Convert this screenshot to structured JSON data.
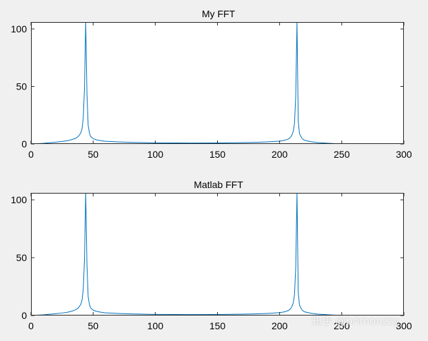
{
  "colors": {
    "background": "#f0f0f0",
    "axes": "#ffffff",
    "frame": "#262626",
    "line": "#0072bd"
  },
  "watermark": "知乎 @brimonzzy",
  "chart_data": [
    {
      "type": "line",
      "title": "My FFT",
      "xlabel": "",
      "ylabel": "",
      "xlim": [
        0,
        300
      ],
      "ylim": [
        0,
        106
      ],
      "xticks": [
        0,
        50,
        100,
        150,
        200,
        250,
        300
      ],
      "yticks": [
        0,
        50,
        100
      ],
      "grid": false,
      "series": [
        {
          "x": [
            1,
            5,
            10,
            15,
            20,
            25,
            30,
            33,
            36,
            38,
            40,
            41,
            42,
            43,
            44,
            45,
            46,
            47,
            48,
            50,
            53,
            56,
            60,
            70,
            80,
            100,
            128,
            150,
            170,
            180,
            190,
            195,
            200,
            203,
            205,
            207,
            208,
            209,
            210,
            211,
            212,
            213,
            214,
            215,
            216,
            218,
            220,
            225,
            230,
            235,
            240,
            245,
            250,
            254
          ],
          "y": [
            0.1,
            0.3,
            0.6,
            1.1,
            1.6,
            2.2,
            3.0,
            3.8,
            5.0,
            6.5,
            9.5,
            13,
            22,
            48,
            106,
            44,
            16,
            9.5,
            6.5,
            4.6,
            3.5,
            2.9,
            2.3,
            1.8,
            1.4,
            1.0,
            0.8,
            0.9,
            1.2,
            1.4,
            1.8,
            2.1,
            2.5,
            3.0,
            3.5,
            4.3,
            5.0,
            6.2,
            8.0,
            11,
            18,
            42,
            106,
            20,
            9.0,
            4.8,
            3.2,
            2.0,
            1.3,
            0.9,
            0.6,
            0.3,
            0.1,
            0.0
          ]
        }
      ]
    },
    {
      "type": "line",
      "title": "Matlab FFT",
      "xlabel": "",
      "ylabel": "",
      "xlim": [
        0,
        300
      ],
      "ylim": [
        0,
        106
      ],
      "xticks": [
        0,
        50,
        100,
        150,
        200,
        250,
        300
      ],
      "yticks": [
        0,
        50,
        100
      ],
      "grid": false,
      "series": [
        {
          "x": [
            1,
            5,
            10,
            15,
            20,
            25,
            30,
            33,
            36,
            38,
            40,
            41,
            42,
            43,
            44,
            45,
            46,
            47,
            48,
            50,
            53,
            56,
            60,
            70,
            80,
            100,
            128,
            150,
            170,
            180,
            190,
            195,
            200,
            203,
            205,
            207,
            208,
            209,
            210,
            211,
            212,
            213,
            214,
            215,
            216,
            218,
            220,
            225,
            230,
            235,
            240,
            245,
            250,
            254
          ],
          "y": [
            0.1,
            0.3,
            0.6,
            1.1,
            1.6,
            2.2,
            3.0,
            3.8,
            5.0,
            6.5,
            9.5,
            13,
            22,
            48,
            106,
            44,
            16,
            9.5,
            6.5,
            4.6,
            3.5,
            2.9,
            2.3,
            1.8,
            1.4,
            1.0,
            0.8,
            0.9,
            1.2,
            1.4,
            1.8,
            2.1,
            2.5,
            3.0,
            3.5,
            4.3,
            5.0,
            6.2,
            8.0,
            11,
            18,
            42,
            106,
            20,
            9.0,
            4.8,
            3.2,
            2.0,
            1.3,
            0.9,
            0.6,
            0.3,
            0.1,
            0.0
          ]
        }
      ]
    }
  ]
}
